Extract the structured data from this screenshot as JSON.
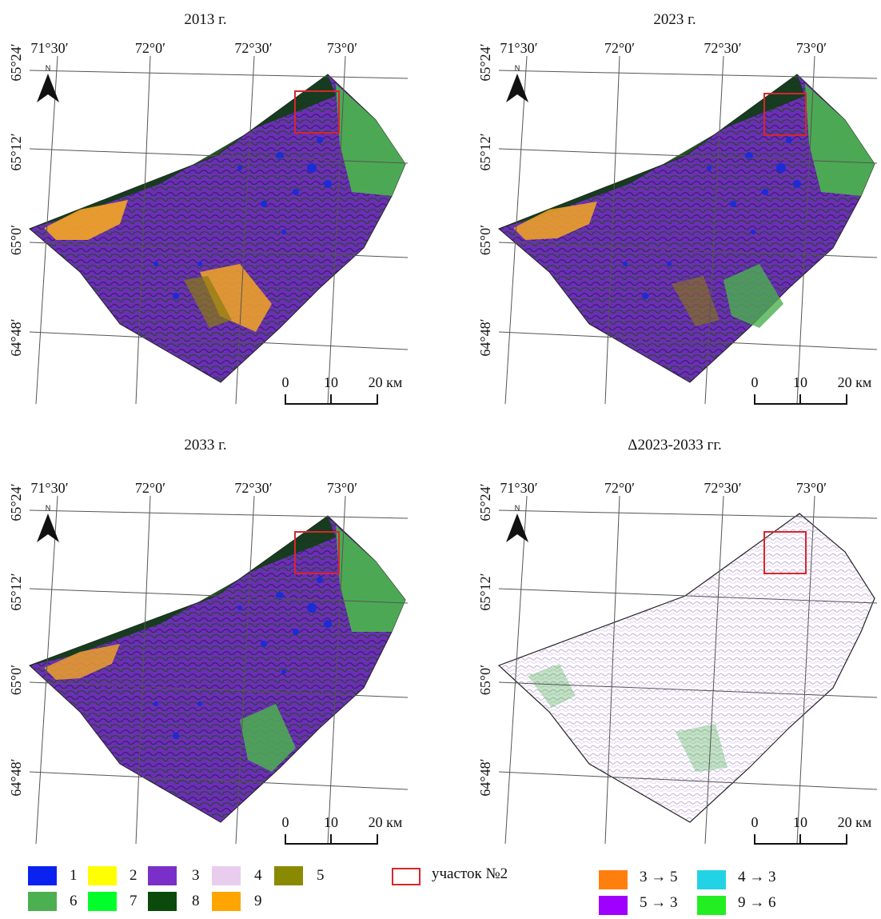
{
  "panels": [
    {
      "title": "2013 г."
    },
    {
      "title": "2023 г."
    },
    {
      "title": "2033 г."
    },
    {
      "title": "Δ2023-2033 гг."
    }
  ],
  "lon_labels": [
    "71°30′",
    "72°0′",
    "72°30′",
    "73°0′"
  ],
  "lat_labels": [
    "65°24′",
    "65°12′",
    "65°0′",
    "64°48′"
  ],
  "north_label": "N",
  "scale": {
    "t0": "0",
    "t1": "10",
    "t2": "20 км"
  },
  "legend": {
    "classes": [
      {
        "label": "1",
        "color": "#0a22f0"
      },
      {
        "label": "2",
        "color": "#ffff00"
      },
      {
        "label": "3",
        "color": "#7a2fc9"
      },
      {
        "label": "4",
        "color": "#e8cdee"
      },
      {
        "label": "5",
        "color": "#8a8a00"
      },
      {
        "label": "6",
        "color": "#4caf50"
      },
      {
        "label": "7",
        "color": "#00ff2a"
      },
      {
        "label": "8",
        "color": "#0a4a0a"
      },
      {
        "label": "9",
        "color": "#ffa500"
      }
    ],
    "study_area": "участок №2",
    "transitions": [
      {
        "label": "3 → 5",
        "color": "#ff7f0e"
      },
      {
        "label": "4 → 3",
        "color": "#22d3e6"
      },
      {
        "label": "5 → 3",
        "color": "#a000ff"
      },
      {
        "label": "9 → 6",
        "color": "#22ee22"
      }
    ]
  },
  "colors": {
    "purple": "#6b2fb3",
    "dark_green": "#0f3d12",
    "green": "#4caf50",
    "orange": "#f5a623",
    "blue": "#1a2cd6",
    "olive": "#8a7a10",
    "red_box": "#d7262b"
  }
}
